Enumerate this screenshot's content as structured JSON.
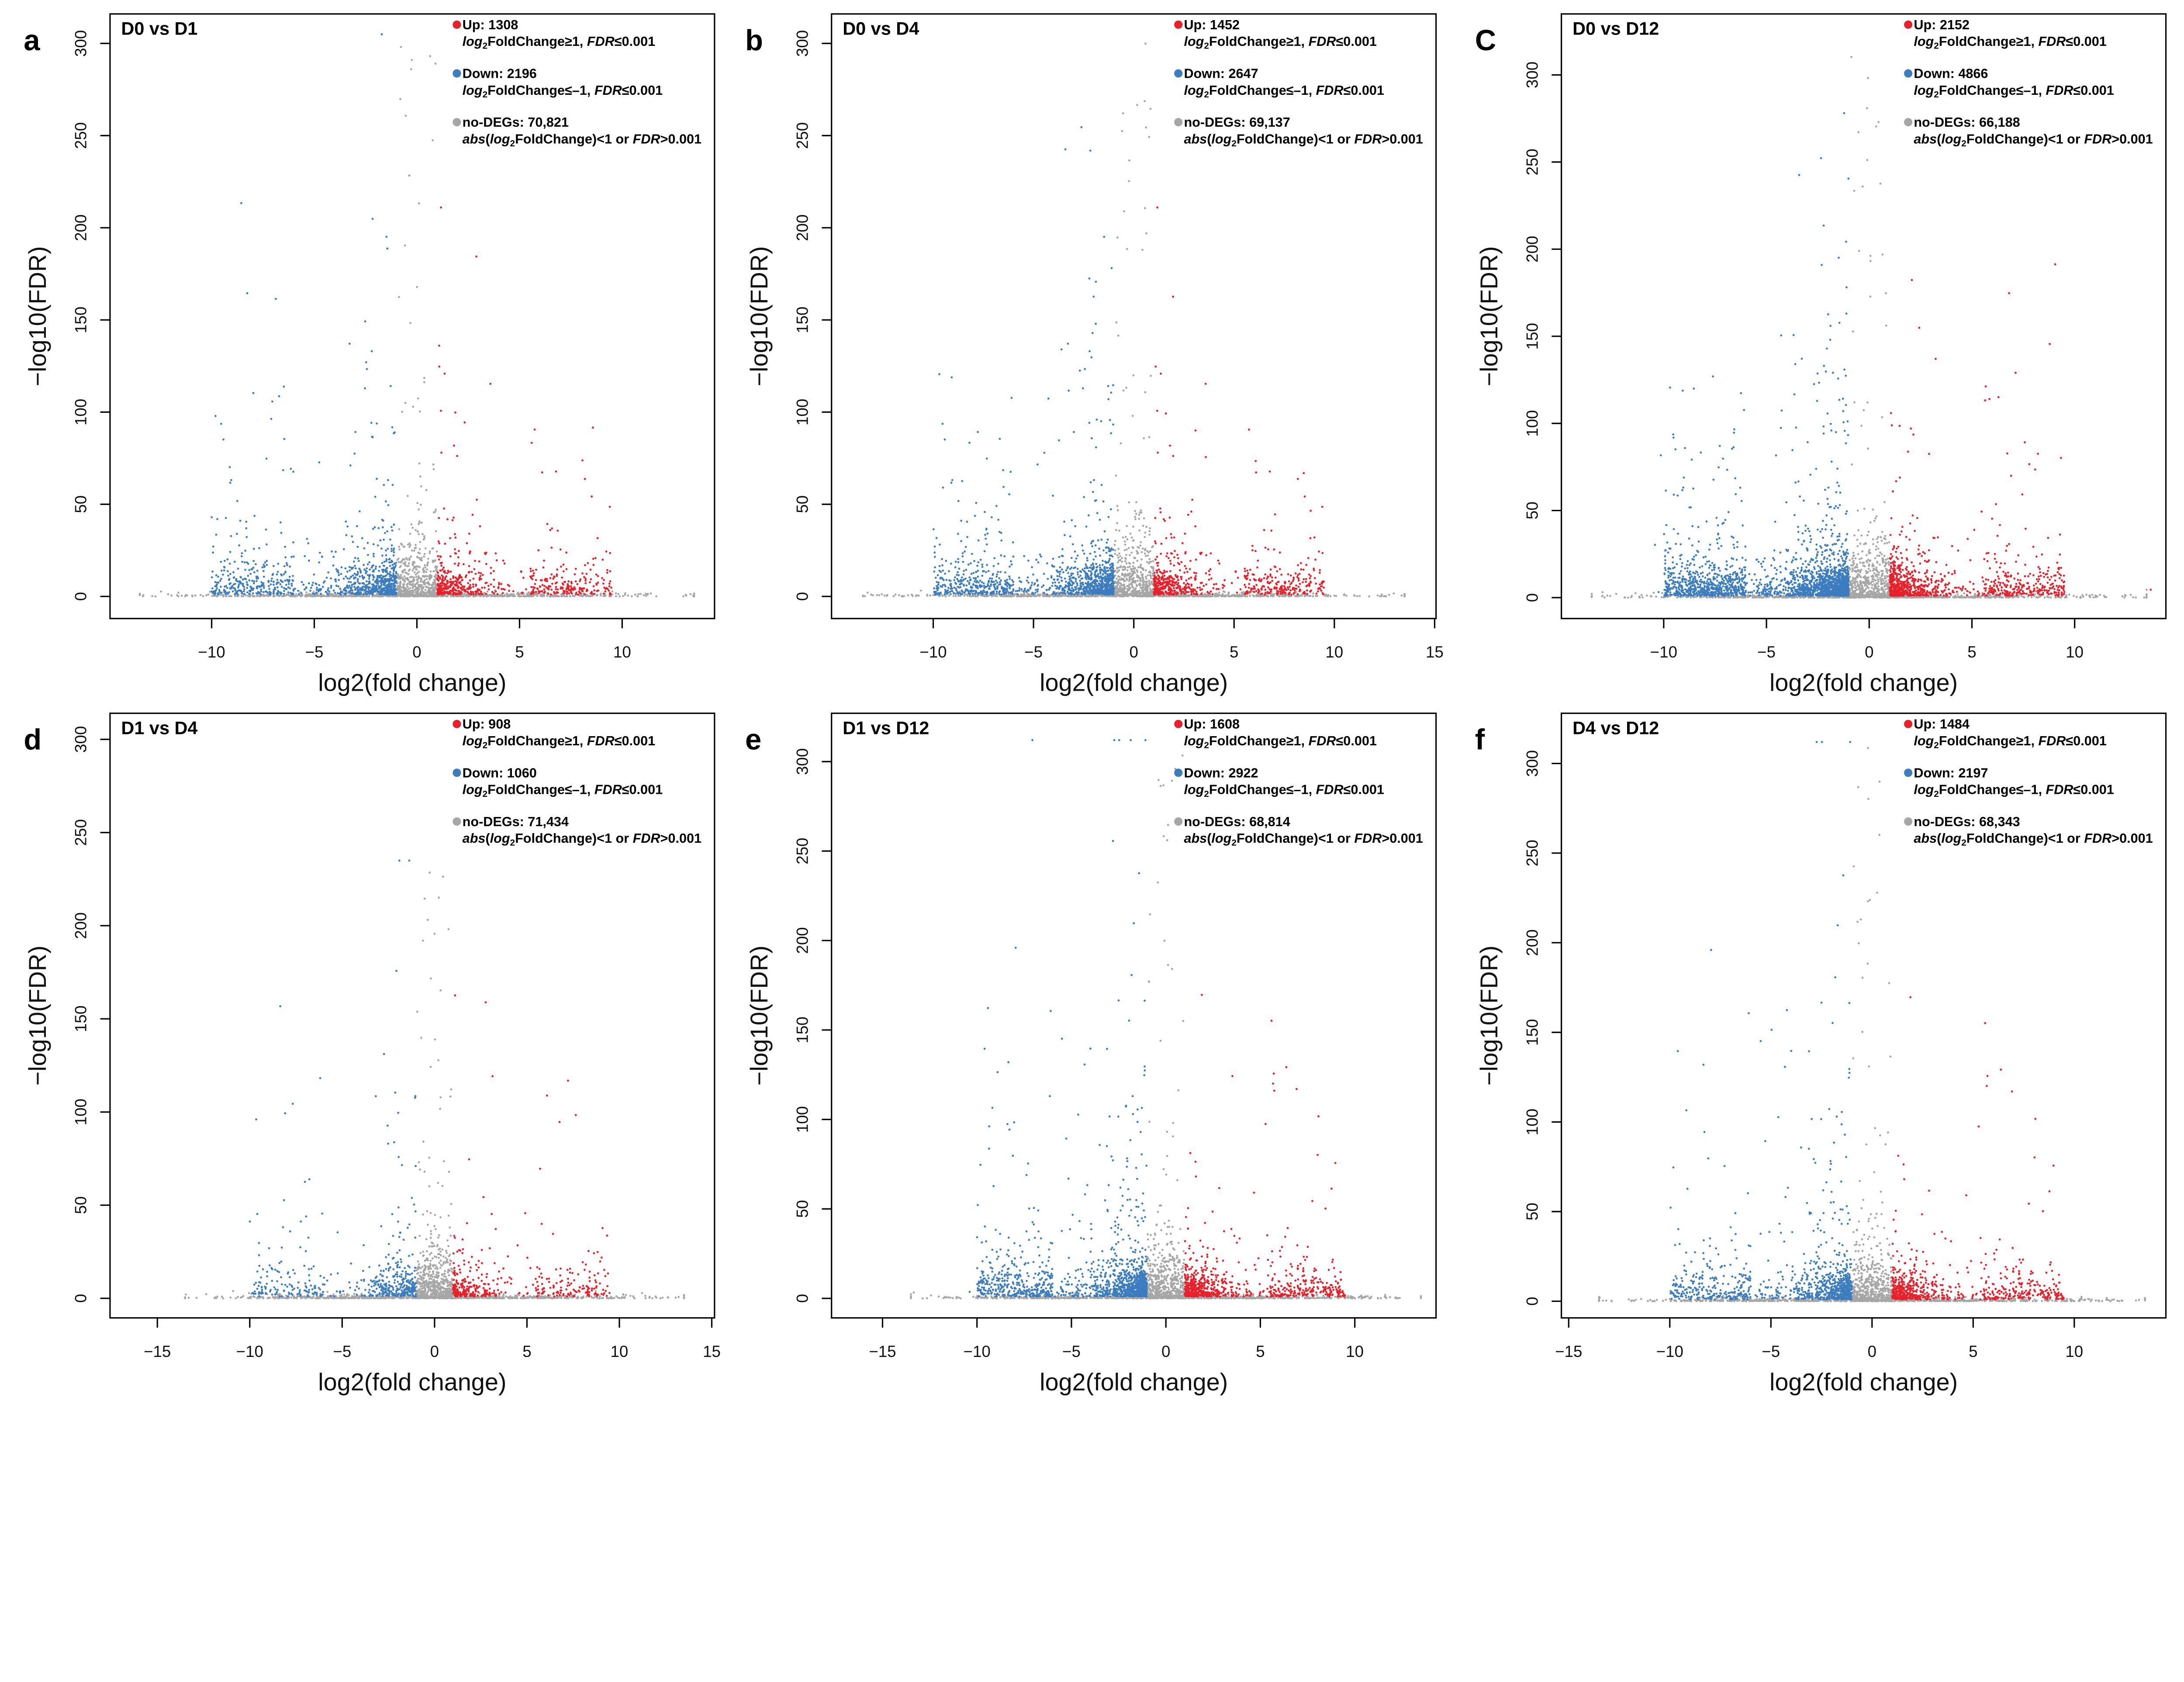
{
  "colors": {
    "up": "#e8202a",
    "down": "#3b7dbf",
    "nodeg": "#a6a6a6"
  },
  "chart_data": [
    {
      "type": "scatter",
      "letter": "a",
      "title": "D0 vs D1",
      "xlabel": "log2(fold change)",
      "ylabel": "−log10(FDR)",
      "xlim": [
        -14.95,
        14.5
      ],
      "ylim": [
        -12,
        316
      ],
      "xticks": [
        -10,
        -5,
        0,
        5,
        10
      ],
      "yticks": [
        0,
        50,
        100,
        150,
        200,
        250,
        300
      ],
      "legend": {
        "up": "Up: 1308",
        "down": "Down: 2196",
        "nodeg": "no-DEGs: 70,821"
      },
      "counts": {
        "up": 1308,
        "down": 2196,
        "nodeg": 70821
      },
      "max_fdr": 305
    },
    {
      "type": "scatter",
      "letter": "b",
      "title": "D0 vs D4",
      "xlabel": "log2(fold change)",
      "ylabel": "−log10(FDR)",
      "xlim": [
        -15.07,
        15.07
      ],
      "ylim": [
        -12,
        316
      ],
      "xticks": [
        -10,
        -5,
        0,
        5,
        10,
        15
      ],
      "yticks": [
        0,
        50,
        100,
        150,
        200,
        250,
        300
      ],
      "legend": {
        "up": "Up: 1452",
        "down": "Down: 2647",
        "nodeg": "no-DEGs: 69,137"
      },
      "counts": {
        "up": 1452,
        "down": 2647,
        "nodeg": 69137
      },
      "max_fdr": 300
    },
    {
      "type": "scatter",
      "letter": "C",
      "title": "D0 vs D12",
      "xlabel": "log2(fold change)",
      "ylabel": "−log10(FDR)",
      "xlim": [
        -14.98,
        14.44
      ],
      "ylim": [
        -12,
        335
      ],
      "xticks": [
        -10,
        -5,
        0,
        5,
        10
      ],
      "yticks": [
        0,
        50,
        100,
        150,
        200,
        250,
        300
      ],
      "legend": {
        "up": "Up: 2152",
        "down": "Down: 4866",
        "nodeg": "no-DEGs: 66,188"
      },
      "counts": {
        "up": 2152,
        "down": 4866,
        "nodeg": 66188
      },
      "max_fdr": 318
    },
    {
      "type": "scatter",
      "letter": "d",
      "title": "D1 vs D4",
      "xlabel": "log2(fold change)",
      "ylabel": "−log10(FDR)",
      "xlim": [
        -17.56,
        15.15
      ],
      "ylim": [
        -10.5,
        314
      ],
      "xticks": [
        -15,
        -10,
        -5,
        0,
        5,
        10,
        15
      ],
      "yticks": [
        0,
        50,
        100,
        150,
        200,
        250,
        300
      ],
      "legend": {
        "up": "Up: 908",
        "down": "Down: 1060",
        "nodeg": "no-DEGs: 71,434"
      },
      "counts": {
        "up": 908,
        "down": 1060,
        "nodeg": 71434
      },
      "max_fdr": 235
    },
    {
      "type": "scatter",
      "letter": "e",
      "title": "D1 vs D12",
      "xlabel": "log2(fold change)",
      "ylabel": "−log10(FDR)",
      "xlim": [
        -17.7,
        14.3
      ],
      "ylim": [
        -10.9,
        327
      ],
      "xticks": [
        -15,
        -10,
        -5,
        0,
        5,
        10
      ],
      "yticks": [
        0,
        50,
        100,
        150,
        200,
        250,
        300
      ],
      "legend": {
        "up": "Up: 1608",
        "down": "Down: 2922",
        "nodeg": "no-DEGs: 68,814"
      },
      "counts": {
        "up": 1608,
        "down": 2922,
        "nodeg": 68814
      },
      "max_fdr": 312
    },
    {
      "type": "scatter",
      "letter": "f",
      "title": "D4 vs D12",
      "xlabel": "log2(fold change)",
      "ylabel": "−log10(FDR)",
      "xlim": [
        -15.36,
        14.53
      ],
      "ylim": [
        -9.3,
        328
      ],
      "xticks": [
        -15,
        -10,
        -5,
        0,
        5,
        10
      ],
      "yticks": [
        0,
        50,
        100,
        150,
        200,
        250,
        300
      ],
      "legend": {
        "up": "Up: 1484",
        "down": "Down: 2197",
        "nodeg": "no-DEGs: 68,343"
      },
      "counts": {
        "up": 1484,
        "down": 2197,
        "nodeg": 68343
      },
      "max_fdr": 312
    }
  ],
  "legend_rules": {
    "up": [
      {
        "t": "log",
        "i": 1
      },
      {
        "t": "2",
        "s": 1
      },
      {
        "t": "FoldChange≥1, "
      },
      {
        "t": "FDR",
        "i": 1
      },
      {
        "t": "≤0.001"
      }
    ],
    "down": [
      {
        "t": "log",
        "i": 1
      },
      {
        "t": "2",
        "s": 1
      },
      {
        "t": "FoldChange≤–1, "
      },
      {
        "t": "FDR",
        "i": 1
      },
      {
        "t": "≤0.001"
      }
    ],
    "nodeg": [
      {
        "t": "abs",
        "i": 1
      },
      {
        "t": "("
      },
      {
        "t": "log",
        "i": 1
      },
      {
        "t": "2",
        "s": 1
      },
      {
        "t": "FoldChange)<1 or "
      },
      {
        "t": "FDR",
        "i": 1
      },
      {
        "t": ">0.001"
      }
    ]
  }
}
